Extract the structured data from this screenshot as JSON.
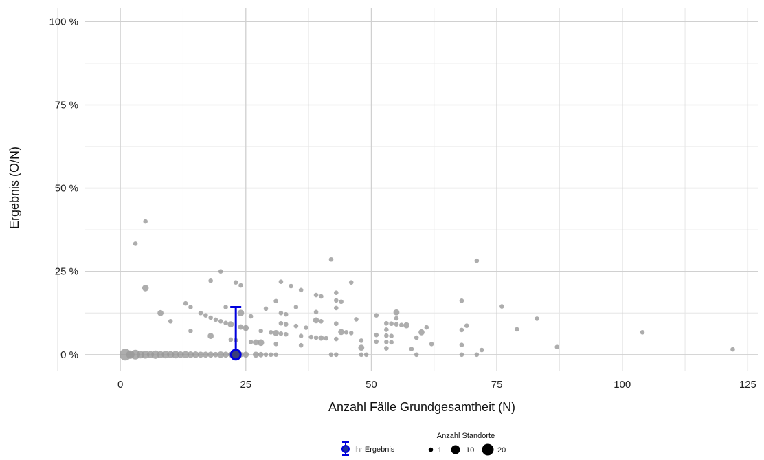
{
  "chart_data": {
    "type": "scatter",
    "xlabel": "Anzahl Fälle Grundgesamtheit (N)",
    "ylabel": "Ergebnis (O/N)",
    "xlim": [
      -7,
      127
    ],
    "ylim": [
      -5,
      104
    ],
    "x_ticks": [
      0,
      25,
      50,
      75,
      100,
      125
    ],
    "x_tick_labels": [
      "0",
      "25",
      "50",
      "75",
      "100",
      "125"
    ],
    "y_ticks": [
      0,
      25,
      50,
      75,
      100
    ],
    "y_tick_labels": [
      "0 %",
      "25 %",
      "50 %",
      "75 %",
      "100 %"
    ],
    "grid": true,
    "point_color": "#999999",
    "highlight_color": "#0000dd",
    "highlight": {
      "name": "Ihr Ergebnis",
      "x": 23,
      "y": 0,
      "y_upper": 14.3
    },
    "points": [
      {
        "x": 1,
        "y": 0,
        "n": 20
      },
      {
        "x": 2,
        "y": 0,
        "n": 8
      },
      {
        "x": 3,
        "y": 0,
        "n": 12
      },
      {
        "x": 4,
        "y": 0,
        "n": 6
      },
      {
        "x": 5,
        "y": 0,
        "n": 7
      },
      {
        "x": 6,
        "y": 0,
        "n": 5
      },
      {
        "x": 7,
        "y": 0,
        "n": 8
      },
      {
        "x": 8,
        "y": 0,
        "n": 5
      },
      {
        "x": 9,
        "y": 0,
        "n": 6
      },
      {
        "x": 10,
        "y": 0,
        "n": 5
      },
      {
        "x": 11,
        "y": 0,
        "n": 6
      },
      {
        "x": 12,
        "y": 0,
        "n": 4
      },
      {
        "x": 13,
        "y": 0,
        "n": 5
      },
      {
        "x": 14,
        "y": 0,
        "n": 4
      },
      {
        "x": 15,
        "y": 0,
        "n": 4
      },
      {
        "x": 16,
        "y": 0,
        "n": 3
      },
      {
        "x": 17,
        "y": 0,
        "n": 3
      },
      {
        "x": 18,
        "y": 0,
        "n": 3
      },
      {
        "x": 19,
        "y": 0,
        "n": 2
      },
      {
        "x": 20,
        "y": 0,
        "n": 4
      },
      {
        "x": 21,
        "y": 0,
        "n": 3
      },
      {
        "x": 22,
        "y": 0,
        "n": 2
      },
      {
        "x": 24,
        "y": 0,
        "n": 2
      },
      {
        "x": 25,
        "y": 0,
        "n": 3
      },
      {
        "x": 27,
        "y": 0,
        "n": 3
      },
      {
        "x": 28,
        "y": 0,
        "n": 2
      },
      {
        "x": 29,
        "y": 0,
        "n": 1
      },
      {
        "x": 30,
        "y": 0,
        "n": 1
      },
      {
        "x": 31,
        "y": 0,
        "n": 1
      },
      {
        "x": 42,
        "y": 0,
        "n": 1
      },
      {
        "x": 43,
        "y": 0,
        "n": 1
      },
      {
        "x": 48,
        "y": 0,
        "n": 1
      },
      {
        "x": 49,
        "y": 0,
        "n": 1
      },
      {
        "x": 59,
        "y": 0,
        "n": 1
      },
      {
        "x": 68,
        "y": 0,
        "n": 1
      },
      {
        "x": 71,
        "y": 0,
        "n": 1
      },
      {
        "x": 3,
        "y": 33.3,
        "n": 1
      },
      {
        "x": 5,
        "y": 40,
        "n": 1
      },
      {
        "x": 5,
        "y": 20,
        "n": 4
      },
      {
        "x": 8,
        "y": 12.5,
        "n": 3
      },
      {
        "x": 10,
        "y": 10,
        "n": 1
      },
      {
        "x": 13,
        "y": 15.4,
        "n": 1
      },
      {
        "x": 14,
        "y": 14.3,
        "n": 1
      },
      {
        "x": 14,
        "y": 7.1,
        "n": 1
      },
      {
        "x": 16,
        "y": 12.5,
        "n": 1
      },
      {
        "x": 17,
        "y": 11.8,
        "n": 1
      },
      {
        "x": 18,
        "y": 11.1,
        "n": 1
      },
      {
        "x": 18,
        "y": 22.2,
        "n": 1
      },
      {
        "x": 18,
        "y": 5.6,
        "n": 3
      },
      {
        "x": 19,
        "y": 10.5,
        "n": 1
      },
      {
        "x": 20,
        "y": 10,
        "n": 1
      },
      {
        "x": 20,
        "y": 25,
        "n": 1
      },
      {
        "x": 21,
        "y": 14.3,
        "n": 1
      },
      {
        "x": 21,
        "y": 9.5,
        "n": 1
      },
      {
        "x": 22,
        "y": 9.1,
        "n": 3
      },
      {
        "x": 22,
        "y": 4.5,
        "n": 1
      },
      {
        "x": 23,
        "y": 21.7,
        "n": 1
      },
      {
        "x": 23,
        "y": 4.3,
        "n": 1
      },
      {
        "x": 24,
        "y": 20.8,
        "n": 1
      },
      {
        "x": 24,
        "y": 12.5,
        "n": 4
      },
      {
        "x": 24,
        "y": 8.3,
        "n": 2
      },
      {
        "x": 25,
        "y": 8,
        "n": 3
      },
      {
        "x": 26,
        "y": 11.5,
        "n": 1
      },
      {
        "x": 26,
        "y": 3.8,
        "n": 1
      },
      {
        "x": 27,
        "y": 3.7,
        "n": 3
      },
      {
        "x": 28,
        "y": 3.6,
        "n": 4
      },
      {
        "x": 28,
        "y": 7.1,
        "n": 1
      },
      {
        "x": 29,
        "y": 13.8,
        "n": 1
      },
      {
        "x": 30,
        "y": 6.7,
        "n": 1
      },
      {
        "x": 31,
        "y": 16.1,
        "n": 1
      },
      {
        "x": 31,
        "y": 6.5,
        "n": 3
      },
      {
        "x": 31,
        "y": 3.2,
        "n": 1
      },
      {
        "x": 32,
        "y": 21.9,
        "n": 1
      },
      {
        "x": 32,
        "y": 12.5,
        "n": 1
      },
      {
        "x": 32,
        "y": 9.4,
        "n": 1
      },
      {
        "x": 32,
        "y": 6.3,
        "n": 1
      },
      {
        "x": 33,
        "y": 12.1,
        "n": 1
      },
      {
        "x": 33,
        "y": 9.1,
        "n": 1
      },
      {
        "x": 33,
        "y": 6.1,
        "n": 1
      },
      {
        "x": 34,
        "y": 20.6,
        "n": 1
      },
      {
        "x": 35,
        "y": 14.3,
        "n": 1
      },
      {
        "x": 35,
        "y": 8.6,
        "n": 1
      },
      {
        "x": 36,
        "y": 19.4,
        "n": 1
      },
      {
        "x": 36,
        "y": 5.6,
        "n": 1
      },
      {
        "x": 36,
        "y": 2.8,
        "n": 1
      },
      {
        "x": 37,
        "y": 8.1,
        "n": 1
      },
      {
        "x": 38,
        "y": 5.3,
        "n": 1
      },
      {
        "x": 39,
        "y": 17.9,
        "n": 1
      },
      {
        "x": 39,
        "y": 12.8,
        "n": 1
      },
      {
        "x": 39,
        "y": 10.3,
        "n": 3
      },
      {
        "x": 39,
        "y": 5.1,
        "n": 1
      },
      {
        "x": 40,
        "y": 17.5,
        "n": 1
      },
      {
        "x": 40,
        "y": 10,
        "n": 1
      },
      {
        "x": 40,
        "y": 5,
        "n": 2
      },
      {
        "x": 41,
        "y": 4.9,
        "n": 1
      },
      {
        "x": 42,
        "y": 28.6,
        "n": 1
      },
      {
        "x": 43,
        "y": 18.6,
        "n": 1
      },
      {
        "x": 43,
        "y": 16.3,
        "n": 1
      },
      {
        "x": 43,
        "y": 14,
        "n": 1
      },
      {
        "x": 43,
        "y": 9.3,
        "n": 1
      },
      {
        "x": 43,
        "y": 4.7,
        "n": 1
      },
      {
        "x": 44,
        "y": 15.9,
        "n": 1
      },
      {
        "x": 44,
        "y": 6.8,
        "n": 3
      },
      {
        "x": 45,
        "y": 6.7,
        "n": 1
      },
      {
        "x": 46,
        "y": 21.7,
        "n": 1
      },
      {
        "x": 46,
        "y": 6.5,
        "n": 1
      },
      {
        "x": 47,
        "y": 10.6,
        "n": 1
      },
      {
        "x": 48,
        "y": 4.2,
        "n": 1
      },
      {
        "x": 48,
        "y": 2.1,
        "n": 3
      },
      {
        "x": 51,
        "y": 11.8,
        "n": 1
      },
      {
        "x": 51,
        "y": 5.9,
        "n": 1
      },
      {
        "x": 51,
        "y": 3.9,
        "n": 1
      },
      {
        "x": 53,
        "y": 9.4,
        "n": 1
      },
      {
        "x": 53,
        "y": 7.5,
        "n": 1
      },
      {
        "x": 53,
        "y": 5.7,
        "n": 1
      },
      {
        "x": 53,
        "y": 3.8,
        "n": 1
      },
      {
        "x": 53,
        "y": 1.9,
        "n": 1
      },
      {
        "x": 54,
        "y": 9.3,
        "n": 1
      },
      {
        "x": 54,
        "y": 5.6,
        "n": 1
      },
      {
        "x": 54,
        "y": 3.7,
        "n": 1
      },
      {
        "x": 55,
        "y": 12.7,
        "n": 3
      },
      {
        "x": 55,
        "y": 10.9,
        "n": 1
      },
      {
        "x": 55,
        "y": 9.1,
        "n": 1
      },
      {
        "x": 56,
        "y": 8.9,
        "n": 1
      },
      {
        "x": 57,
        "y": 8.8,
        "n": 3
      },
      {
        "x": 58,
        "y": 1.7,
        "n": 1
      },
      {
        "x": 59,
        "y": 5.1,
        "n": 1
      },
      {
        "x": 60,
        "y": 6.7,
        "n": 3
      },
      {
        "x": 61,
        "y": 8.2,
        "n": 1
      },
      {
        "x": 62,
        "y": 3.2,
        "n": 1
      },
      {
        "x": 68,
        "y": 16.2,
        "n": 1
      },
      {
        "x": 68,
        "y": 7.4,
        "n": 1
      },
      {
        "x": 68,
        "y": 2.9,
        "n": 1
      },
      {
        "x": 69,
        "y": 8.7,
        "n": 1
      },
      {
        "x": 71,
        "y": 28.2,
        "n": 1
      },
      {
        "x": 72,
        "y": 1.4,
        "n": 1
      },
      {
        "x": 76,
        "y": 14.5,
        "n": 1
      },
      {
        "x": 79,
        "y": 7.6,
        "n": 1
      },
      {
        "x": 83,
        "y": 10.8,
        "n": 1
      },
      {
        "x": 87,
        "y": 2.3,
        "n": 1
      },
      {
        "x": 104,
        "y": 6.7,
        "n": 1
      },
      {
        "x": 122,
        "y": 1.6,
        "n": 1
      }
    ],
    "legend": {
      "placement": "bottom",
      "highlight_label": "Ihr Ergebnis",
      "size_title": "Anzahl Standorte",
      "size_values": [
        1,
        10,
        20
      ]
    }
  }
}
